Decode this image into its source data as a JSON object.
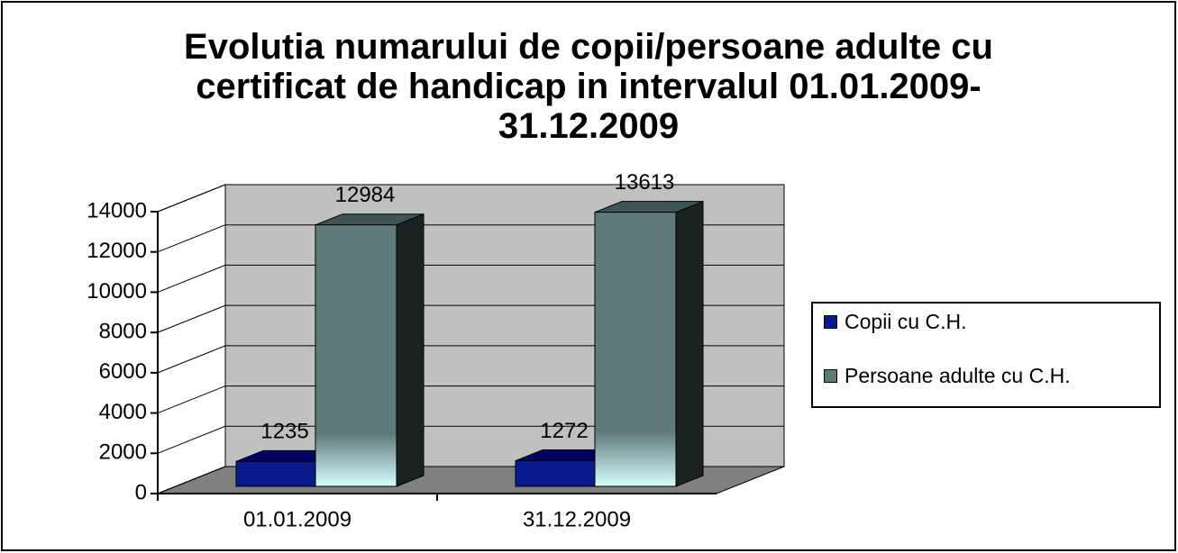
{
  "chart_data": {
    "type": "bar3d",
    "title": "Evolutia numarului de copii/persoane adulte cu certificat de handicap in intervalul 01.01.2009-31.12.2009",
    "categories": [
      "01.01.2009",
      "31.12.2009"
    ],
    "series": [
      {
        "name": "Copii cu C.H.",
        "color": "#0a1a8c",
        "values": [
          1235,
          1272
        ]
      },
      {
        "name": "Persoane adulte cu C.H.",
        "color": "#607a7a",
        "values": [
          12984,
          13613
        ]
      }
    ],
    "ylim": [
      0,
      14000
    ],
    "yticks": [
      0,
      2000,
      4000,
      6000,
      8000,
      10000,
      12000,
      14000
    ],
    "grid": true,
    "legend": "right"
  }
}
